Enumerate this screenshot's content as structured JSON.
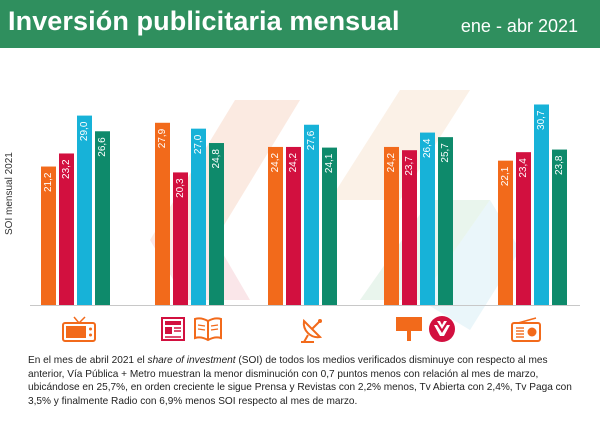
{
  "header": {
    "title": "Inversión publicitaria mensual",
    "period": "ene - abr 2021",
    "color": "#2f8f5e"
  },
  "chart_data": {
    "type": "bar",
    "ylabel": "SOI mensual 2021",
    "categories": [
      "Tv Abierta",
      "Prensa y Revistas",
      "Tv Paga",
      "Vía Pública + Metro",
      "Radio"
    ],
    "category_icons": [
      "tv-icon",
      "newspaper-magazine-icon",
      "satellite-dish-icon",
      "billboard-metro-icon",
      "radio-icon"
    ],
    "series": [
      {
        "color": "#f26a1b",
        "values": [
          21.2,
          27.9,
          24.2,
          24.2,
          22.1
        ]
      },
      {
        "color": "#d2103f",
        "values": [
          23.2,
          20.3,
          24.2,
          23.7,
          23.4
        ]
      },
      {
        "color": "#17b2d8",
        "values": [
          29.0,
          27.0,
          27.6,
          26.4,
          30.7
        ]
      },
      {
        "color": "#0e8a6b",
        "values": [
          26.6,
          24.8,
          24.1,
          25.7,
          23.8
        ]
      }
    ],
    "value_labels": [
      [
        "21,2",
        "23,2",
        "29,0",
        "26,6"
      ],
      [
        "27,9",
        "20,3",
        "27,0",
        "24,8"
      ],
      [
        "24,2",
        "24,2",
        "27,6",
        "24,1"
      ],
      [
        "24,2",
        "23,7",
        "26,4",
        "25,7"
      ],
      [
        "22,1",
        "23,4",
        "30,7",
        "23,8"
      ]
    ],
    "ylim": [
      0,
      32
    ],
    "grid": false,
    "legend": "none"
  },
  "footer": {
    "p1": "En el mes de abril 2021 el ",
    "em": "share of investment",
    "p2": " (SOI) de todos los medios verificados disminuye con respecto al mes anterior, Vía Pública + Metro muestran la menor disminución con 0,7 puntos menos con relación al mes de marzo, ubicándose en 25,7%, en orden creciente le sigue Prensa y Revistas con 2,2% menos, Tv Abierta con 2,4%, Tv Paga con 3,5% y finalmente Radio con 6,9% menos SOI respecto al mes de marzo."
  }
}
